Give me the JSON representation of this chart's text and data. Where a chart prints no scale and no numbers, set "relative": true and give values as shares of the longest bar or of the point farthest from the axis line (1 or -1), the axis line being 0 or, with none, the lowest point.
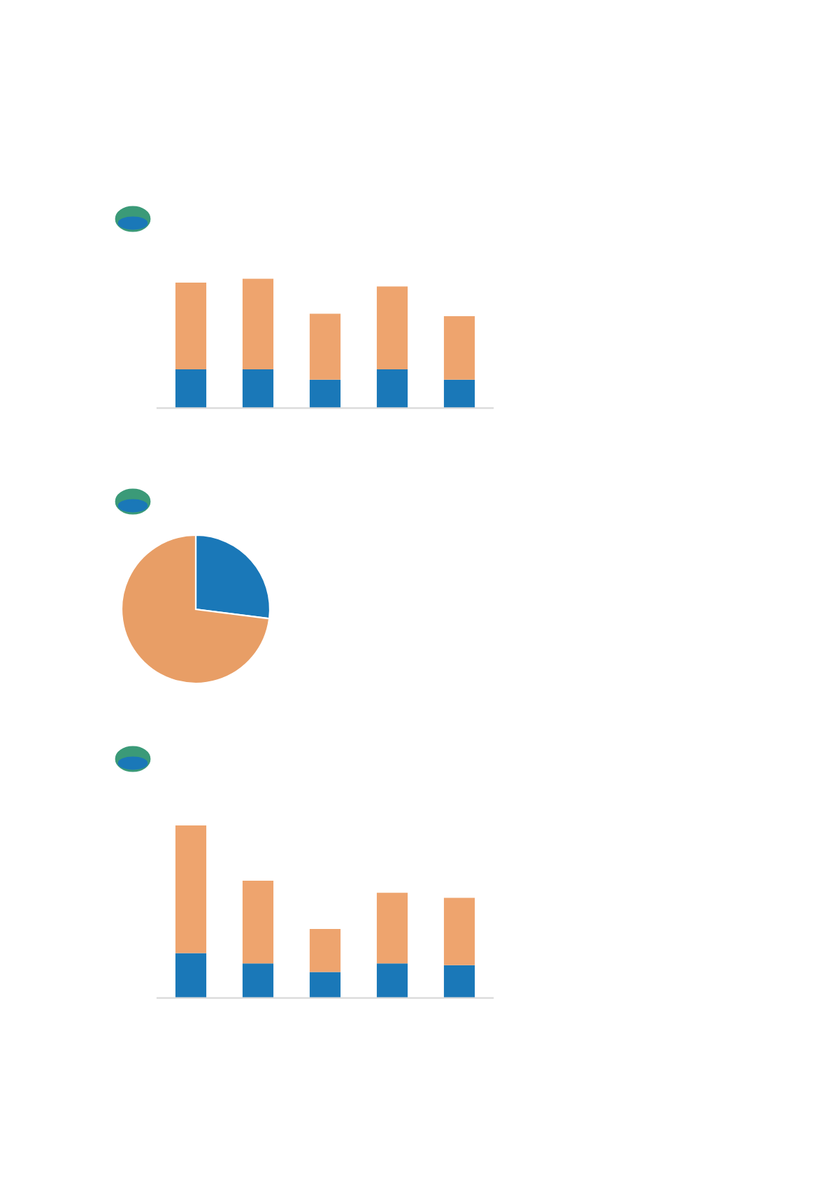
{
  "chart_data": [
    {
      "type": "bar",
      "stacked": true,
      "relative": true,
      "categories": [
        null,
        null,
        null,
        null,
        null
      ],
      "series": [
        {
          "color": "#1a78b8",
          "values": [
            0.3,
            0.3,
            0.22,
            0.3,
            0.22
          ]
        },
        {
          "color": "#eea46e",
          "values": [
            0.67,
            0.7,
            0.51,
            0.64,
            0.49
          ]
        }
      ]
    },
    {
      "type": "pie",
      "categories": [
        null,
        null
      ],
      "values": [
        27,
        73
      ],
      "colors": [
        "#1a78b8",
        "#e89e66"
      ]
    },
    {
      "type": "bar",
      "stacked": true,
      "relative": true,
      "categories": [
        null,
        null,
        null,
        null,
        null
      ],
      "series": [
        {
          "color": "#1a78b8",
          "values": [
            0.26,
            0.2,
            0.15,
            0.2,
            0.19
          ]
        },
        {
          "color": "#eea46e",
          "values": [
            0.74,
            0.48,
            0.25,
            0.41,
            0.39
          ]
        }
      ]
    }
  ]
}
